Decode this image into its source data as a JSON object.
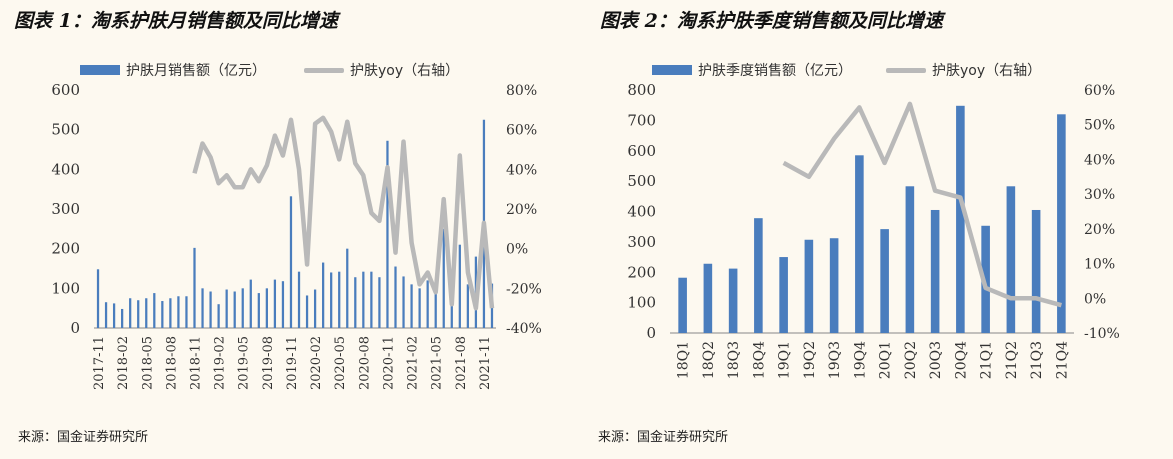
{
  "figures": [
    {
      "title": "图表 1：淘系护肤月销售额及同比增速",
      "legend": {
        "bar": "护肤月销售额（亿元）",
        "line": "护肤yoy（右轴）"
      },
      "source": "来源：国金证券研究所"
    },
    {
      "title": "图表 2：淘系护肤季度销售额及同比增速",
      "legend": {
        "bar": "护肤季度销售额（亿元）",
        "line": "护肤yoy（右轴）"
      },
      "source": "来源：国金证券研究所"
    }
  ],
  "chart_data": [
    {
      "type": "bar",
      "title": "图表 1：淘系护肤月销售额及同比增速",
      "categories": [
        "2017-11",
        "2017-12",
        "2018-01",
        "2018-02",
        "2018-03",
        "2018-04",
        "2018-05",
        "2018-06",
        "2018-07",
        "2018-08",
        "2018-09",
        "2018-10",
        "2018-11",
        "2018-12",
        "2019-01",
        "2019-02",
        "2019-03",
        "2019-04",
        "2019-05",
        "2019-06",
        "2019-07",
        "2019-08",
        "2019-09",
        "2019-10",
        "2019-11",
        "2019-12",
        "2020-01",
        "2020-02",
        "2020-03",
        "2020-04",
        "2020-05",
        "2020-06",
        "2020-07",
        "2020-08",
        "2020-09",
        "2020-10",
        "2020-11",
        "2020-12",
        "2021-01",
        "2021-02",
        "2021-03",
        "2021-04",
        "2021-05",
        "2021-06",
        "2021-07",
        "2021-08",
        "2021-09",
        "2021-10",
        "2021-11",
        "2021-12"
      ],
      "tick_labels": [
        "2017-11",
        "2018-02",
        "2018-05",
        "2018-08",
        "2018-11",
        "2019-02",
        "2019-05",
        "2019-08",
        "2019-11",
        "2020-02",
        "2020-05",
        "2020-08",
        "2020-11",
        "2021-02",
        "2021-05",
        "2021-08",
        "2021-11"
      ],
      "series": [
        {
          "name": "护肤月销售额（亿元）",
          "axis": "left",
          "type": "bar",
          "values": [
            148,
            65,
            62,
            48,
            75,
            70,
            75,
            88,
            68,
            75,
            80,
            80,
            202,
            100,
            92,
            60,
            97,
            92,
            100,
            122,
            88,
            100,
            122,
            118,
            332,
            142,
            82,
            97,
            165,
            140,
            142,
            200,
            128,
            142,
            142,
            128,
            472,
            155,
            130,
            110,
            100,
            120,
            100,
            250,
            105,
            210,
            110,
            180,
            525,
            112
          ]
        },
        {
          "name": "护肤yoy（右轴）",
          "axis": "right",
          "type": "line",
          "values": [
            null,
            null,
            null,
            null,
            null,
            null,
            null,
            null,
            null,
            null,
            null,
            null,
            38,
            53,
            46,
            33,
            37,
            31,
            31,
            40,
            34,
            42,
            57,
            47,
            65,
            40,
            -8,
            63,
            66,
            59,
            45,
            64,
            43,
            37,
            18,
            14,
            41,
            -2,
            54,
            3,
            -18,
            -12,
            -22,
            25,
            -28,
            47,
            -12,
            -30,
            13,
            -30
          ]
        }
      ],
      "ylim": [
        0,
        600
      ],
      "yticks": [
        "0",
        "100",
        "200",
        "300",
        "400",
        "500",
        "600"
      ],
      "y2lim": [
        -40,
        80
      ],
      "y2ticks": [
        "-40%",
        "-20%",
        "0%",
        "20%",
        "40%",
        "60%",
        "80%"
      ],
      "legend_position": "top"
    },
    {
      "type": "bar",
      "title": "图表 2：淘系护肤季度销售额及同比增速",
      "categories": [
        "18Q1",
        "18Q2",
        "18Q3",
        "18Q4",
        "19Q1",
        "19Q2",
        "19Q3",
        "19Q4",
        "20Q1",
        "20Q2",
        "20Q3",
        "20Q4",
        "21Q1",
        "21Q2",
        "21Q3",
        "21Q4"
      ],
      "series": [
        {
          "name": "护肤季度销售额（亿元）",
          "axis": "left",
          "type": "bar",
          "values": [
            182,
            228,
            212,
            378,
            250,
            307,
            312,
            585,
            342,
            483,
            405,
            748,
            353,
            483,
            405,
            720
          ]
        },
        {
          "name": "护肤yoy（右轴）",
          "axis": "right",
          "type": "line",
          "values": [
            null,
            null,
            null,
            null,
            39,
            35,
            46,
            55,
            39,
            56,
            31,
            29,
            3,
            0,
            0,
            -2
          ]
        }
      ],
      "ylim": [
        0,
        800
      ],
      "yticks": [
        "0",
        "100",
        "200",
        "300",
        "400",
        "500",
        "600",
        "700",
        "800"
      ],
      "y2lim": [
        -10,
        60
      ],
      "y2ticks": [
        "-10%",
        "0%",
        "10%",
        "20%",
        "30%",
        "40%",
        "50%",
        "60%"
      ],
      "legend_position": "top"
    }
  ],
  "colors": {
    "bar": "#4a7dbd",
    "line": "#b9b9b9",
    "background": "#fdf9f0"
  }
}
